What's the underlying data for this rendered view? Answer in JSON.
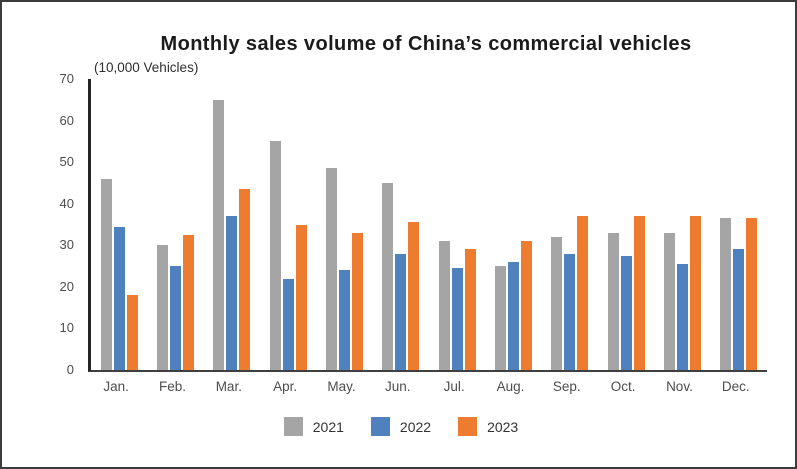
{
  "frame": {
    "background": "#ffffff",
    "border_color": "#3c3c3c"
  },
  "chart_data": {
    "type": "bar",
    "title": "Monthly sales volume of China’s commercial vehicles",
    "unit_label": "(10,000 Vehicles)",
    "xlabel": "",
    "ylabel": "(10,000 Vehicles)",
    "categories": [
      "Jan.",
      "Feb.",
      "Mar.",
      "Apr.",
      "May.",
      "Jun.",
      "Jul.",
      "Aug.",
      "Sep.",
      "Oct.",
      "Nov.",
      "Dec."
    ],
    "series": [
      {
        "name": "2021",
        "color": "#a5a5a5",
        "values": [
          46,
          30,
          65,
          55,
          48.5,
          45,
          31,
          25,
          32,
          33,
          33,
          36.5
        ]
      },
      {
        "name": "2022",
        "color": "#4e81bd",
        "values": [
          34.5,
          25,
          37,
          22,
          24,
          28,
          24.5,
          26,
          28,
          27.5,
          25.5,
          29
        ]
      },
      {
        "name": "2023",
        "color": "#ed7c30",
        "values": [
          18,
          32.5,
          43.5,
          35,
          33,
          35.5,
          29,
          31,
          37,
          37,
          37,
          36.5
        ]
      }
    ],
    "ylim": [
      0,
      70
    ],
    "yticks": [
      0,
      10,
      20,
      30,
      40,
      50,
      60,
      70
    ],
    "grid": false,
    "legend_position": "bottom",
    "axis_color": "#3f3f3f",
    "tick_label_color": "#4d4d4d"
  }
}
